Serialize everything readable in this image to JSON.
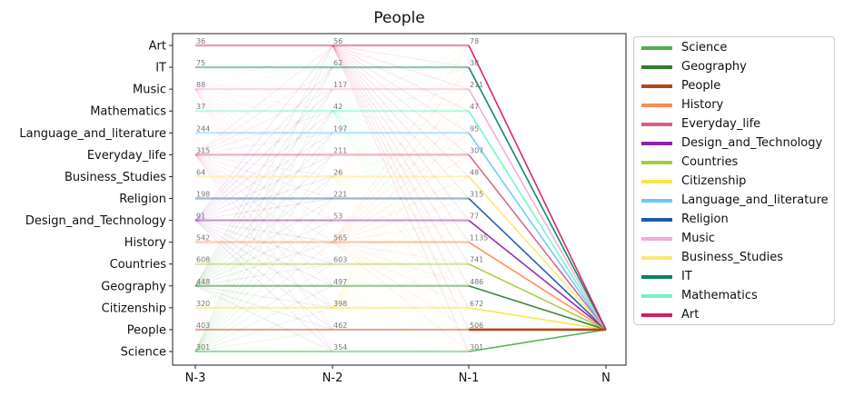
{
  "chart_data": {
    "type": "line",
    "title": "People",
    "x": [
      "N-3",
      "N-2",
      "N-1",
      "N"
    ],
    "categories": [
      "Science",
      "People",
      "Citizenship",
      "Geography",
      "Countries",
      "History",
      "Design_and_Technology",
      "Religion",
      "Business_Studies",
      "Everyday_life",
      "Language_and_literature",
      "Mathematics",
      "Music",
      "IT",
      "Art"
    ],
    "counts": {
      "N-3": {
        "Art": 36,
        "IT": 75,
        "Music": 88,
        "Mathematics": 37,
        "Language_and_literature": 244,
        "Everyday_life": 315,
        "Business_Studies": 64,
        "Religion": 198,
        "Design_and_Technology": 91,
        "History": 542,
        "Countries": 608,
        "Geography": 448,
        "Citizenship": 320,
        "People": 403,
        "Science": 301
      },
      "N-2": {
        "Art": 56,
        "IT": 62,
        "Music": 117,
        "Mathematics": 42,
        "Language_and_literature": 197,
        "Everyday_life": 211,
        "Business_Studies": 26,
        "Religion": 221,
        "Design_and_Technology": 53,
        "History": 565,
        "Countries": 603,
        "Geography": 497,
        "Citizenship": 398,
        "People": 462,
        "Science": 354
      },
      "N-1": {
        "Art": 78,
        "IT": 38,
        "Music": 211,
        "Mathematics": 47,
        "Language_and_literature": 95,
        "Everyday_life": 307,
        "Business_Studies": 48,
        "Religion": 315,
        "Design_and_Technology": 77,
        "History": 1135,
        "Countries": 741,
        "Geography": 486,
        "Citizenship": 672,
        "People": 506,
        "Science": 301
      }
    },
    "target": "People",
    "legend": {
      "placement": "outside-right",
      "entries": [
        {
          "name": "Science",
          "color": "#4caf50"
        },
        {
          "name": "Geography",
          "color": "#2e7d32"
        },
        {
          "name": "People",
          "color": "#b5451b"
        },
        {
          "name": "History",
          "color": "#ff8a50"
        },
        {
          "name": "Everyday_life",
          "color": "#d6608f"
        },
        {
          "name": "Design_and_Technology",
          "color": "#8e24aa"
        },
        {
          "name": "Countries",
          "color": "#a5cd39"
        },
        {
          "name": "Citizenship",
          "color": "#f5e642"
        },
        {
          "name": "Language_and_literature",
          "color": "#6ec6ff"
        },
        {
          "name": "Religion",
          "color": "#1f5aa6"
        },
        {
          "name": "Music",
          "color": "#f8a8d8"
        },
        {
          "name": "Business_Studies",
          "color": "#ffe57a"
        },
        {
          "name": "IT",
          "color": "#00875a"
        },
        {
          "name": "Mathematics",
          "color": "#6ef5c6"
        },
        {
          "name": "Art",
          "color": "#d81b60"
        }
      ]
    },
    "grid": false
  }
}
